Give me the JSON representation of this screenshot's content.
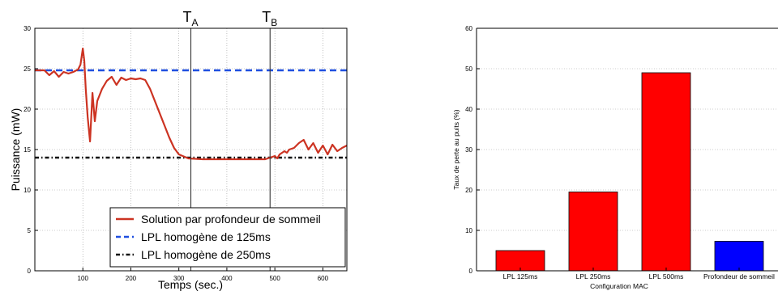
{
  "chart_data": [
    {
      "type": "line",
      "title": "",
      "xlabel": "Temps (sec.)",
      "ylabel": "Puissance (mW)",
      "xlim": [
        0,
        650
      ],
      "ylim": [
        0,
        30
      ],
      "xticks": [
        100,
        200,
        300,
        400,
        500,
        600
      ],
      "xtick_labels": [
        "100",
        "200",
        "300",
        "400",
        "500",
        "600"
      ],
      "yticks": [
        0,
        5,
        10,
        15,
        20,
        25,
        30
      ],
      "ytick_labels": [
        "0",
        "5",
        "10",
        "15",
        "20",
        "25",
        "30"
      ],
      "grid": true,
      "legend_position": "bottom-right",
      "markers": [
        {
          "x": 325,
          "label": "T",
          "sub": "A"
        },
        {
          "x": 490,
          "label": "T",
          "sub": "B"
        }
      ],
      "series": [
        {
          "name": "Solution par profondeur de sommeil",
          "color": "#cc3322",
          "style": "solid",
          "x": [
            0,
            20,
            30,
            40,
            50,
            60,
            70,
            80,
            90,
            95,
            100,
            103,
            106,
            110,
            115,
            120,
            125,
            130,
            140,
            150,
            160,
            170,
            180,
            190,
            200,
            210,
            220,
            230,
            240,
            250,
            260,
            270,
            280,
            290,
            300,
            320,
            350,
            400,
            450,
            480,
            500,
            505,
            510,
            520,
            525,
            530,
            540,
            550,
            560,
            570,
            580,
            590,
            600,
            610,
            620,
            630,
            640,
            650
          ],
          "y": [
            24.8,
            24.8,
            24.2,
            24.7,
            24.0,
            24.6,
            24.4,
            24.6,
            24.9,
            25.5,
            27.5,
            26.0,
            22.5,
            19.0,
            16.0,
            22.0,
            18.5,
            21.0,
            22.5,
            23.5,
            24.0,
            23.0,
            23.9,
            23.6,
            23.8,
            23.7,
            23.8,
            23.6,
            22.5,
            21.0,
            19.5,
            18.0,
            16.5,
            15.2,
            14.4,
            13.9,
            13.8,
            13.8,
            13.8,
            13.8,
            14.2,
            13.9,
            14.4,
            14.8,
            14.6,
            15.0,
            15.2,
            15.8,
            16.2,
            15.0,
            15.8,
            14.6,
            15.5,
            14.4,
            15.6,
            14.8,
            15.2,
            15.5
          ]
        },
        {
          "name": "LPL homogène de 125ms",
          "color": "#1f4fe0",
          "style": "dashed",
          "x": [
            0,
            650
          ],
          "y": [
            24.8,
            24.8
          ]
        },
        {
          "name": "LPL homogène de 250ms",
          "color": "#111111",
          "style": "dashdot",
          "x": [
            0,
            650
          ],
          "y": [
            14.0,
            14.0
          ]
        }
      ]
    },
    {
      "type": "bar",
      "title": "",
      "xlabel": "Configuration MAC",
      "ylabel": "Taux de perte au puits (%)",
      "ylim": [
        0,
        60
      ],
      "yticks": [
        0,
        10,
        20,
        30,
        40,
        50,
        60
      ],
      "ytick_labels": [
        "0",
        "10",
        "20",
        "30",
        "40",
        "50",
        "60"
      ],
      "grid": true,
      "categories": [
        "LPL 125ms",
        "LPL 250ms",
        "LPL 500ms",
        "Profondeur de sommeil"
      ],
      "values": [
        5,
        19.5,
        49,
        7.3
      ],
      "colors": [
        "#ff0000",
        "#ff0000",
        "#ff0000",
        "#0000ff"
      ]
    }
  ]
}
